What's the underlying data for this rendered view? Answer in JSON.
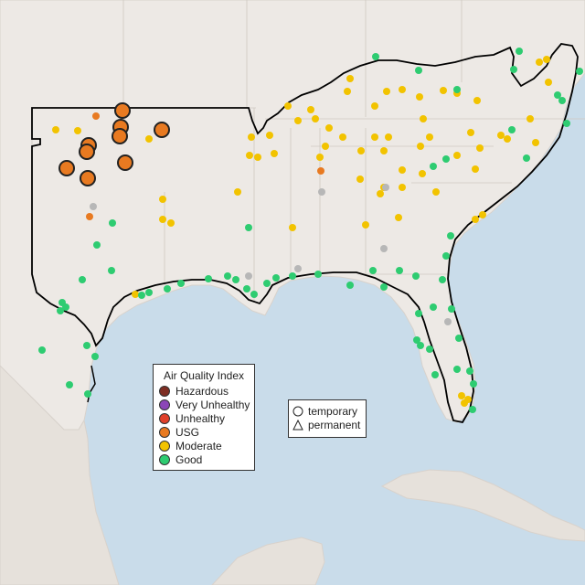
{
  "legend": {
    "title": "Air Quality Index",
    "items": [
      {
        "label": "Hazardous",
        "color": "#7e2e23"
      },
      {
        "label": "Very Unhealthy",
        "color": "#8b46b7"
      },
      {
        "label": "Unhealthy",
        "color": "#e0402a"
      },
      {
        "label": "USG",
        "color": "#e87a21"
      },
      {
        "label": "Moderate",
        "color": "#f2c300"
      },
      {
        "label": "Good",
        "color": "#2ecc71"
      }
    ]
  },
  "monitor_types": {
    "items": [
      {
        "label": "temporary",
        "shape": "circle-icon"
      },
      {
        "label": "permanent",
        "shape": "triangle-icon"
      }
    ]
  },
  "colors": {
    "water": "#c9dcea",
    "land": "#ede9e5",
    "no_data": "#b7b7b7"
  }
}
